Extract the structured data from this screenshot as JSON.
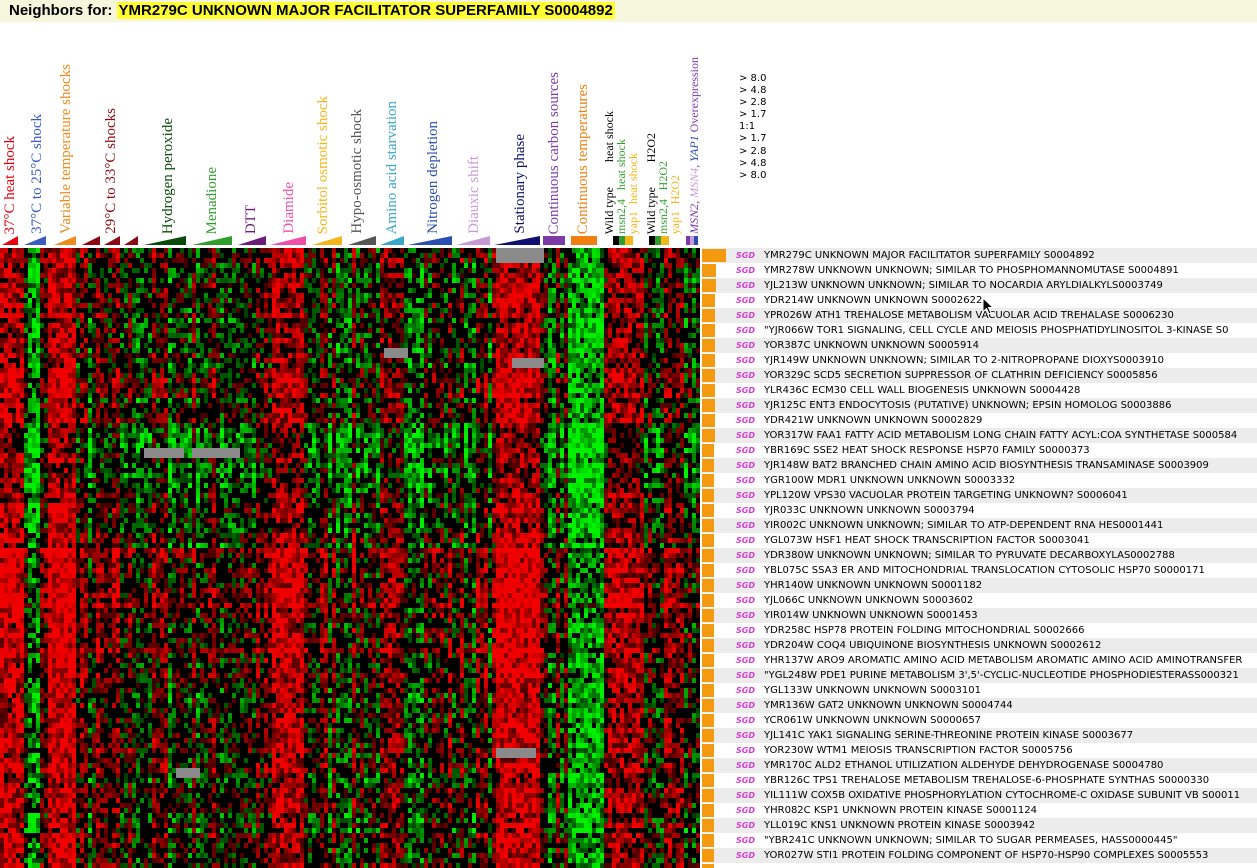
{
  "title": {
    "prefix": "Neighbors for:",
    "gene": "YMR279C UNKNOWN MAJOR FACILITATOR SUPERFAMILY S0004892"
  },
  "colors": {
    "heat": "#e8000f",
    "cold_shift": "#3a5bc0",
    "variable": "#f08a1c",
    "shock2933": "#8b0a13",
    "h2o2": "#0a4a0a",
    "menadione": "#2f9e2f",
    "dtt": "#6b1e78",
    "diamide": "#f04fa8",
    "sorbitol": "#f4b61a",
    "hypo": "#555555",
    "amino": "#3aa7c9",
    "nitrogen": "#2a4fb0",
    "diauxic": "#c89ad6",
    "stationary": "#101070",
    "carbon": "#7b3aa8",
    "temperature": "#f07f10",
    "overexp": "#7b3aa8",
    "bar": "#f49a10",
    "sgd": "#d040d0"
  },
  "columns": [
    {
      "id": "heat",
      "label": "37°C heat shock"
    },
    {
      "id": "cold_shift",
      "label": "37°C to 25°C shock"
    },
    {
      "id": "variable",
      "label": "Variable temperature shocks"
    },
    {
      "id": "shock2933",
      "label": "29°C to 33°C shocks"
    },
    {
      "id": "h2o2",
      "label": "Hydrogen peroxide"
    },
    {
      "id": "menadione",
      "label": "Menadione"
    },
    {
      "id": "dtt",
      "label": "DTT"
    },
    {
      "id": "diamide",
      "label": "Diamide"
    },
    {
      "id": "sorbitol",
      "label": "Sorbitol osmotic shock"
    },
    {
      "id": "hypo",
      "label": "Hypo-osmotic shock"
    },
    {
      "id": "amino",
      "label": "Amino acid starvation"
    },
    {
      "id": "nitrogen",
      "label": "Nitrogen depletion"
    },
    {
      "id": "diauxic",
      "label": "Diauxic shift"
    },
    {
      "id": "stationary",
      "label": "Stationary phase"
    },
    {
      "id": "carbon",
      "label": "Continuous carbon sources"
    },
    {
      "id": "temperature",
      "label": "Continuous temperatures"
    }
  ],
  "mutants": {
    "wt_heat": "Wild type",
    "heat1": "heat shock",
    "msn24": "msn2,4",
    "heat2": "heat shock",
    "yap1": "yap1",
    "heat3": "heat shock",
    "wt_h2o2": "Wild type",
    "h2o2_1": "H2O2",
    "msn24b": "msn2,4",
    "h2o2_2": "H2O2",
    "yap1b": "yap1",
    "h2o2_3": "H2O2",
    "overexp_prefix": "MSN2",
    "overexp_2": "MSN4",
    "overexp_3": "YAP1",
    "overexp_suffix": "Overexpression"
  },
  "legend": [
    "> 8.0",
    "> 4.8",
    "> 2.8",
    "> 1.7",
    "1:1",
    "> 1.7",
    "> 2.8",
    "> 4.8",
    "> 8.0"
  ],
  "sgd_label": "SGD",
  "genes": [
    {
      "text": "YMR279C UNKNOWN MAJOR FACILITATOR SUPERFAMILY S0004892",
      "bar": 1.0
    },
    {
      "text": "YMR278W UNKNOWN UNKNOWN; SIMILAR TO PHOSPHOMANNOMUTASE S0004891",
      "bar": 0.6
    },
    {
      "text": "YJL213W UNKNOWN UNKNOWN; SIMILAR TO NOCARDIA ARYLDIALKYLS0003749",
      "bar": 0.6
    },
    {
      "text": "YDR214W UNKNOWN UNKNOWN S0002622",
      "bar": 0.55
    },
    {
      "text": "YPR026W ATH1 TREHALOSE METABOLISM VACUOLAR ACID TREHALASE S0006230",
      "bar": 0.55
    },
    {
      "text": "\"YJR066W TOR1 SIGNALING, CELL CYCLE AND MEIOSIS PHOSPHATIDYLINOSITOL 3-KINASE S0",
      "bar": 0.55
    },
    {
      "text": "YOR387C UNKNOWN UNKNOWN S0005914",
      "bar": 0.55
    },
    {
      "text": "YJR149W UNKNOWN UNKNOWN; SIMILAR TO 2-NITROPROPANE DIOXYS0003910",
      "bar": 0.55
    },
    {
      "text": "YOR329C SCD5 SECRETION SUPPRESSOR OF CLATHRIN DEFICIENCY S0005856",
      "bar": 0.55
    },
    {
      "text": "YLR436C ECM30 CELL WALL BIOGENESIS UNKNOWN S0004428",
      "bar": 0.55
    },
    {
      "text": "YJR125C ENT3 ENDOCYTOSIS (PUTATIVE) UNKNOWN; EPSIN HOMOLOG S0003886",
      "bar": 0.55
    },
    {
      "text": "YDR421W UNKNOWN UNKNOWN S0002829",
      "bar": 0.55
    },
    {
      "text": "YOR317W FAA1 FATTY ACID METABOLISM LONG CHAIN FATTY ACYL:COA SYNTHETASE S000584",
      "bar": 0.55
    },
    {
      "text": "YBR169C SSE2 HEAT SHOCK RESPONSE HSP70 FAMILY S0000373",
      "bar": 0.5
    },
    {
      "text": "YJR148W BAT2 BRANCHED CHAIN AMINO ACID BIOSYNTHESIS TRANSAMINASE S0003909",
      "bar": 0.5
    },
    {
      "text": "YGR100W MDR1 UNKNOWN UNKNOWN S0003332",
      "bar": 0.5
    },
    {
      "text": "YPL120W VPS30 VACUOLAR PROTEIN TARGETING UNKNOWN? S0006041",
      "bar": 0.5
    },
    {
      "text": "YJR033C UNKNOWN UNKNOWN S0003794",
      "bar": 0.5
    },
    {
      "text": "YIR002C UNKNOWN UNKNOWN; SIMILAR TO ATP-DEPENDENT RNA HES0001441",
      "bar": 0.5
    },
    {
      "text": "YGL073W HSF1 HEAT SHOCK TRANSCRIPTION FACTOR S0003041",
      "bar": 0.5
    },
    {
      "text": "YDR380W UNKNOWN UNKNOWN; SIMILAR TO PYRUVATE DECARBOXYLAS0002788",
      "bar": 0.5
    },
    {
      "text": "YBL075C SSA3 ER AND MITOCHONDRIAL TRANSLOCATION CYTOSOLIC HSP70 S0000171",
      "bar": 0.5
    },
    {
      "text": "YHR140W UNKNOWN UNKNOWN S0001182",
      "bar": 0.5
    },
    {
      "text": "YJL066C UNKNOWN UNKNOWN S0003602",
      "bar": 0.5
    },
    {
      "text": "YIR014W UNKNOWN UNKNOWN S0001453",
      "bar": 0.5
    },
    {
      "text": "YDR258C HSP78 PROTEIN FOLDING MITOCHONDRIAL S0002666",
      "bar": 0.5
    },
    {
      "text": "YDR204W COQ4 UBIQUINONE BIOSYNTHESIS UNKNOWN S0002612",
      "bar": 0.5
    },
    {
      "text": "YHR137W ARO9 AROMATIC AMINO ACID METABOLISM AROMATIC AMINO ACID AMINOTRANSFER",
      "bar": 0.5
    },
    {
      "text": "\"YGL248W PDE1 PURINE METABOLISM 3',5'-CYCLIC-NUCLEOTIDE PHOSPHODIESTERASS000321",
      "bar": 0.5
    },
    {
      "text": "YGL133W UNKNOWN UNKNOWN S0003101",
      "bar": 0.5
    },
    {
      "text": "YMR136W GAT2 UNKNOWN UNKNOWN S0004744",
      "bar": 0.5
    },
    {
      "text": "YCR061W UNKNOWN UNKNOWN S0000657",
      "bar": 0.5
    },
    {
      "text": "YJL141C YAK1 SIGNALING SERINE-THREONINE PROTEIN KINASE S0003677",
      "bar": 0.5
    },
    {
      "text": "YOR230W WTM1 MEIOSIS TRANSCRIPTION FACTOR S0005756",
      "bar": 0.5
    },
    {
      "text": "YMR170C ALD2 ETHANOL UTILIZATION ALDEHYDE DEHYDROGENASE S0004780",
      "bar": 0.5
    },
    {
      "text": "YBR126C TPS1 TREHALOSE METABOLISM TREHALOSE-6-PHOSPHATE SYNTHAS S0000330",
      "bar": 0.5
    },
    {
      "text": "YIL111W COX5B OXIDATIVE PHOSPHORYLATION CYTOCHROME-C OXIDASE SUBUNIT VB S00011",
      "bar": 0.5
    },
    {
      "text": "YHR082C KSP1 UNKNOWN PROTEIN KINASE S0001124",
      "bar": 0.5
    },
    {
      "text": "YLL019C KNS1 UNKNOWN PROTEIN KINASE S0003942",
      "bar": 0.5
    },
    {
      "text": "\"YBR241C UNKNOWN UNKNOWN; SIMILAR TO SUGAR PERMEASES, HASS0000445\"",
      "bar": 0.5
    },
    {
      "text": "YOR027W STI1 PROTEIN FOLDING COMPONENT OF HSP70-HSP90 COMPLEXES S0005553",
      "bar": 0.5
    },
    {
      "text": "",
      "bar": 0.5
    }
  ]
}
